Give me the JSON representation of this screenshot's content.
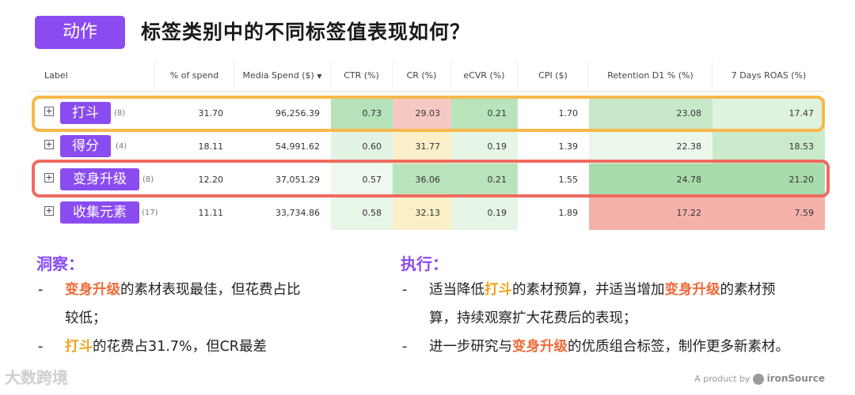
{
  "header": {
    "badge": "动作",
    "title": "标签类别中的不同标签值表现如何？"
  },
  "table": {
    "columns": [
      "Label",
      "% of spend",
      "Media Spend ($)",
      "CTR (%)",
      "CR (%)",
      "eCVR (%)",
      "CPI ($)",
      "Retention D1 % (%)",
      "7 Days ROAS (%)"
    ],
    "rows": [
      {
        "label": "打斗",
        "count": "(8)",
        "spend_pct": "31.70",
        "media_spend": "96,256.39",
        "ctr": "0.73",
        "cr": "29.03",
        "ecvr": "0.21",
        "cpi": "1.70",
        "ret": "23.08",
        "roas": "17.47"
      },
      {
        "label": "得分",
        "count": "(4)",
        "spend_pct": "18.11",
        "media_spend": "54,991.62",
        "ctr": "0.60",
        "cr": "31.77",
        "ecvr": "0.19",
        "cpi": "1.39",
        "ret": "22.38",
        "roas": "18.53"
      },
      {
        "label": "变身升级",
        "count": "(8)",
        "spend_pct": "12.20",
        "media_spend": "37,051.29",
        "ctr": "0.57",
        "cr": "36.06",
        "ecvr": "0.21",
        "cpi": "1.55",
        "ret": "24.78",
        "roas": "21.20"
      },
      {
        "label": "收集元素",
        "count": "(17)",
        "spend_pct": "11.11",
        "media_spend": "33,734.86",
        "ctr": "0.58",
        "cr": "32.13",
        "ecvr": "0.19",
        "cpi": "1.89",
        "ret": "17.22",
        "roas": "7.59"
      }
    ]
  },
  "insight": {
    "heading": "洞察：",
    "l1_hl": "变身升级",
    "l1_rest": "的素材表现最佳，但花费占比",
    "l1_cont": "较低；",
    "l2_hl": "打斗",
    "l2_rest": "的花费占31.7%，但CR最差"
  },
  "action": {
    "heading": "执行：",
    "l1_a": "适当降低",
    "l1_hl1": "打斗",
    "l1_b": "的素材预算，并适当增加",
    "l1_hl2": "变身升级",
    "l1_c": "的素材预",
    "l1_cont": "算，持续观察扩大花费后的表现；",
    "l2_a": "进一步研究与",
    "l2_hl": "变身升级",
    "l2_b": "的优质组合标签，制作更多新素材。"
  },
  "bullet": "-",
  "footer": {
    "watermark": "大数跨境",
    "product": "A product by",
    "brand": "ironSource"
  }
}
